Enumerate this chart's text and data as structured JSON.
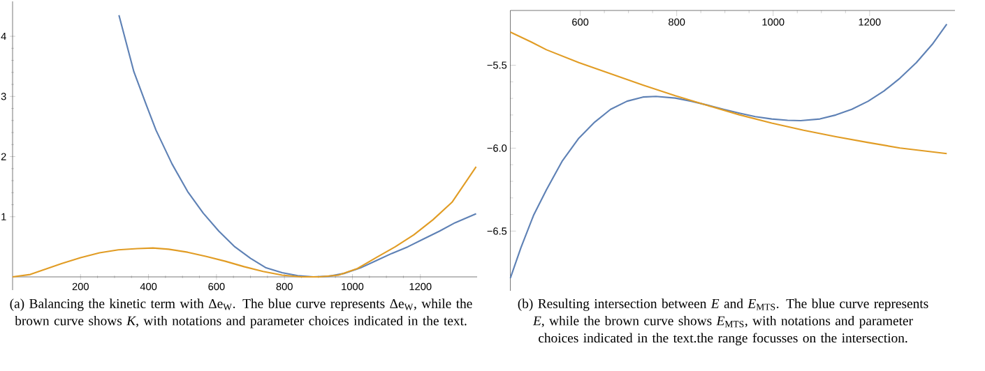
{
  "chart_data": [
    {
      "type": "line",
      "xlim": [
        0,
        1367
      ],
      "ylim": [
        -0.22,
        4.58
      ],
      "xticks": [
        200,
        400,
        600,
        800,
        1000,
        1200
      ],
      "yticks": [
        1,
        2,
        3,
        4
      ],
      "series": [
        {
          "color": "#5e81b5",
          "x": [
            313,
            357,
            394,
            422,
            469,
            515,
            561,
            607,
            654,
            700,
            746,
            793,
            839,
            885,
            931,
            978,
            1024,
            1070,
            1116,
            1163,
            1209,
            1256,
            1302,
            1364
          ],
          "values": [
            4.35,
            3.41,
            2.85,
            2.44,
            1.88,
            1.42,
            1.06,
            0.76,
            0.5,
            0.31,
            0.15,
            0.07,
            0.02,
            0,
            0.01,
            0.06,
            0.15,
            0.27,
            0.39,
            0.5,
            0.63,
            0.76,
            0.9,
            1.05
          ]
        },
        {
          "color": "#e19c24",
          "x": [
            0,
            52,
            98,
            144,
            200,
            256,
            311,
            367,
            413,
            459,
            515,
            570,
            626,
            681,
            737,
            793,
            848,
            904,
            959,
            1015,
            1070,
            1126,
            1181,
            1237,
            1293,
            1364
          ],
          "values": [
            0,
            0.04,
            0.13,
            0.22,
            0.32,
            0.4,
            0.45,
            0.47,
            0.48,
            0.46,
            0.41,
            0.34,
            0.26,
            0.17,
            0.09,
            0.03,
            0,
            0,
            0.03,
            0.14,
            0.32,
            0.5,
            0.7,
            0.95,
            1.24,
            1.83
          ]
        }
      ],
      "annotations": [
        "(a) Balancing the kinetic term with Δe$_{W}$. The blue curve represents Δe$_{W}$, while the brown curve shows *K*, with notations and parameter choices indicated in the text."
      ]
    },
    {
      "type": "line",
      "xlim": [
        455,
        1377
      ],
      "ylim": [
        -6.86,
        -5.17
      ],
      "xticks": [
        600,
        800,
        1000,
        1200
      ],
      "yticks": [
        {
          "value": -6.5,
          "label": "−6.5"
        },
        {
          "value": -6.0,
          "label": "−6.0"
        },
        {
          "value": -5.5,
          "label": "−5.5"
        }
      ],
      "series": [
        {
          "color": "#5e81b5",
          "x": [
            455,
            477,
            503,
            530,
            563,
            597,
            630,
            663,
            697,
            730,
            757,
            797,
            830,
            863,
            897,
            930,
            963,
            997,
            1030,
            1057,
            1097,
            1130,
            1163,
            1197,
            1230,
            1263,
            1297,
            1330,
            1360
          ],
          "values": [
            -6.784,
            -6.6,
            -6.406,
            -6.25,
            -6.076,
            -5.94,
            -5.843,
            -5.766,
            -5.717,
            -5.692,
            -5.688,
            -5.698,
            -5.717,
            -5.74,
            -5.766,
            -5.789,
            -5.81,
            -5.824,
            -5.832,
            -5.834,
            -5.824,
            -5.8,
            -5.766,
            -5.717,
            -5.655,
            -5.578,
            -5.484,
            -5.374,
            -5.252
          ]
        },
        {
          "color": "#e19c24",
          "x": [
            455,
            497,
            530,
            597,
            663,
            730,
            797,
            863,
            930,
            997,
            1063,
            1130,
            1197,
            1263,
            1360
          ],
          "values": [
            -5.3,
            -5.358,
            -5.407,
            -5.484,
            -5.552,
            -5.62,
            -5.684,
            -5.742,
            -5.799,
            -5.849,
            -5.892,
            -5.931,
            -5.966,
            -5.999,
            -6.033
          ]
        }
      ],
      "annotations": [
        "(b) Resulting intersection between *E* and *E*$_{MTS}$. The blue curve represents *E*, while the brown curve shows *E*$_{MTS}$, with notations and parameter choices indicated in the text.the range focusses on the intersection."
      ]
    }
  ]
}
